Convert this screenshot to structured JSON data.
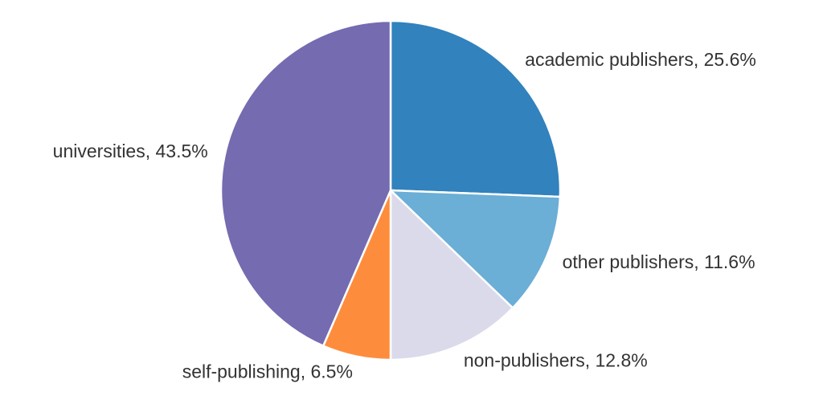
{
  "chart_data": {
    "type": "pie",
    "start_angle_deg": 90,
    "direction": "clockwise",
    "slices": [
      {
        "label": "academic publishers",
        "value": 25.6,
        "display": "academic publishers, 25.6%",
        "color": "#3182bd"
      },
      {
        "label": "other publishers",
        "value": 11.6,
        "display": "other publishers, 11.6%",
        "color": "#6baed6"
      },
      {
        "label": "non-publishers",
        "value": 12.8,
        "display": "non-publishers, 12.8%",
        "color": "#dadaeb"
      },
      {
        "label": "self-publishing",
        "value": 6.5,
        "display": "self-publishing, 6.5%",
        "color": "#fd8d3c"
      },
      {
        "label": "universities",
        "value": 43.5,
        "display": "universities, 43.5%",
        "color": "#756bb1"
      }
    ]
  }
}
